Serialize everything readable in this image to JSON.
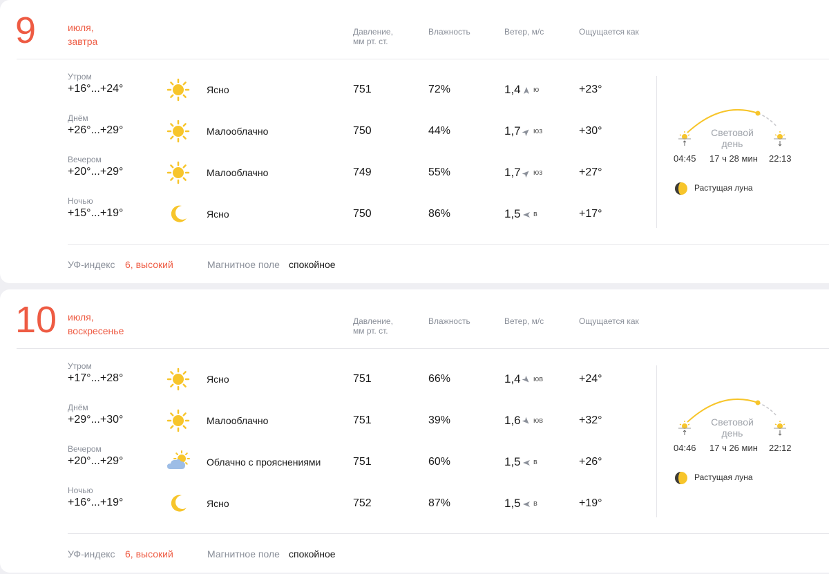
{
  "columns": {
    "pressure_line1": "Давление,",
    "pressure_line2": "мм рт. ст.",
    "humidity": "Влажность",
    "wind": "Ветер, м/с",
    "feels": "Ощущается как"
  },
  "colors": {
    "accent": "#ee5b43",
    "muted": "#8a8f99",
    "sun": "#f7c52b",
    "cloud": "#9dbde6"
  },
  "days": [
    {
      "day": "9",
      "month": "июля,",
      "weekday": "завтра",
      "periods": [
        {
          "name": "Утром",
          "temp": "+16°...+24°",
          "icon": "sun-icon",
          "condition": "Ясно",
          "pressure": "751",
          "humidity": "72%",
          "wind_speed": "1,4",
          "wind_dir": "ю",
          "wind_arrow": "up",
          "feels": "+23°"
        },
        {
          "name": "Днём",
          "temp": "+26°...+29°",
          "icon": "sun-icon",
          "condition": "Малооблачно",
          "pressure": "750",
          "humidity": "44%",
          "wind_speed": "1,7",
          "wind_dir": "юз",
          "wind_arrow": "up-right",
          "feels": "+30°"
        },
        {
          "name": "Вечером",
          "temp": "+20°...+29°",
          "icon": "sun-icon",
          "condition": "Малооблачно",
          "pressure": "749",
          "humidity": "55%",
          "wind_speed": "1,7",
          "wind_dir": "юз",
          "wind_arrow": "up-right",
          "feels": "+27°"
        },
        {
          "name": "Ночью",
          "temp": "+15°...+19°",
          "icon": "moon-icon",
          "condition": "Ясно",
          "pressure": "750",
          "humidity": "86%",
          "wind_speed": "1,5",
          "wind_dir": "в",
          "wind_arrow": "left",
          "feels": "+17°"
        }
      ],
      "sun": {
        "label_line1": "Световой",
        "label_line2": "день",
        "sunrise": "04:45",
        "daylength": "17 ч 28 мин",
        "sunset": "22:13"
      },
      "moon": "Растущая луна",
      "uv_label": "УФ-индекс",
      "uv_value": "6, высокий",
      "magnetic_label": "Магнитное поле",
      "magnetic_value": "спокойное"
    },
    {
      "day": "10",
      "month": "июля,",
      "weekday": "воскресенье",
      "periods": [
        {
          "name": "Утром",
          "temp": "+17°...+28°",
          "icon": "sun-icon",
          "condition": "Ясно",
          "pressure": "751",
          "humidity": "66%",
          "wind_speed": "1,4",
          "wind_dir": "юв",
          "wind_arrow": "down-right",
          "feels": "+24°"
        },
        {
          "name": "Днём",
          "temp": "+29°...+30°",
          "icon": "sun-icon",
          "condition": "Малооблачно",
          "pressure": "751",
          "humidity": "39%",
          "wind_speed": "1,6",
          "wind_dir": "юв",
          "wind_arrow": "down-right",
          "feels": "+32°"
        },
        {
          "name": "Вечером",
          "temp": "+20°...+29°",
          "icon": "cloud-sun-icon",
          "condition": "Облачно с прояснениями",
          "pressure": "751",
          "humidity": "60%",
          "wind_speed": "1,5",
          "wind_dir": "в",
          "wind_arrow": "left",
          "feels": "+26°"
        },
        {
          "name": "Ночью",
          "temp": "+16°...+19°",
          "icon": "moon-icon",
          "condition": "Ясно",
          "pressure": "752",
          "humidity": "87%",
          "wind_speed": "1,5",
          "wind_dir": "в",
          "wind_arrow": "left",
          "feels": "+19°"
        }
      ],
      "sun": {
        "label_line1": "Световой",
        "label_line2": "день",
        "sunrise": "04:46",
        "daylength": "17 ч 26 мин",
        "sunset": "22:12"
      },
      "moon": "Растущая луна",
      "uv_label": "УФ-индекс",
      "uv_value": "6, высокий",
      "magnetic_label": "Магнитное поле",
      "magnetic_value": "спокойное"
    }
  ]
}
